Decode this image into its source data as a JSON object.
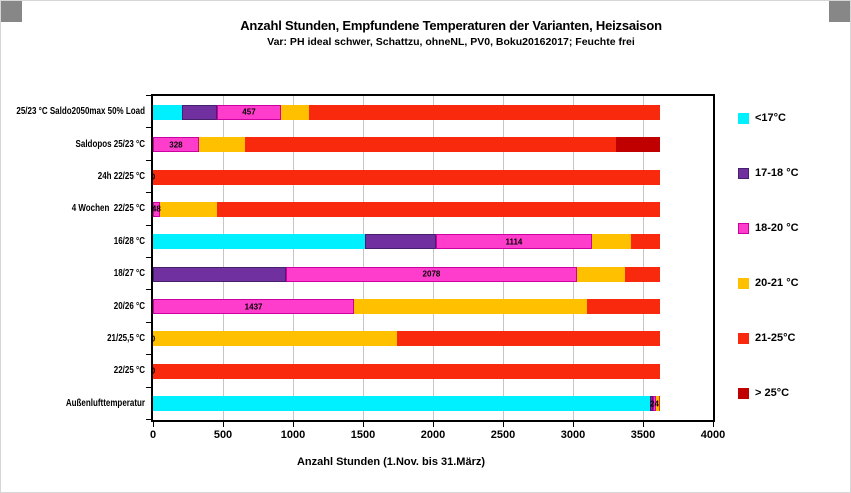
{
  "title": "Anzahl Stunden, Empfundene Temperaturen der Varianten, Heizsaison",
  "subtitle": "Var: PH ideal schwer, Schattzu, ohneNL, PV0, Boku20162017; Feuchte frei",
  "xlabel": "Anzahl Stunden (1.Nov. bis 31.März)",
  "colors": {
    "grid": "#c6c6c6",
    "axis": "#000000",
    "handle_gray": "#878787"
  },
  "chart_data": {
    "type": "bar",
    "orientation": "horizontal",
    "stacked": true,
    "grid": "vertical",
    "legend_position": "right",
    "xlim": [
      0,
      4000
    ],
    "x_ticks": [
      0,
      500,
      1000,
      1500,
      2000,
      2500,
      3000,
      3500,
      4000
    ],
    "categories": [
      "25/23 °C Saldo2050max 50% Load",
      "Saldopos 25/23 °C",
      "24h 22/25 °C",
      "4 Wochen  22/25 °C",
      "16/28 °C",
      "18/27 °C",
      "20/26 °C",
      "21/25,5 °C",
      "22/25 °C",
      "Außenlufttemperatur"
    ],
    "series": [
      {
        "name": "<17°C",
        "color": "#00F0FF",
        "border": null,
        "values": [
          207,
          0,
          0,
          0,
          1514,
          0,
          0,
          0,
          0,
          3550
        ]
      },
      {
        "name": "17-18 °C",
        "color": "#7030A0",
        "border": "#46206B",
        "values": [
          250,
          0,
          0,
          0,
          507,
          950,
          0,
          0,
          0,
          20
        ]
      },
      {
        "name": "18-20 °C",
        "color": "#FF3DCC",
        "border": "#CC00A0",
        "show_labels": true,
        "values": [
          457,
          328,
          0,
          48,
          1114,
          2078,
          1437,
          0,
          0,
          24
        ],
        "labels": [
          "457",
          "328",
          "0",
          "48",
          "1114",
          "2078",
          "1437",
          "0",
          "0",
          "24"
        ]
      },
      {
        "name": "20-21 °C",
        "color": "#FFC000",
        "border": null,
        "values": [
          200,
          330,
          0,
          410,
          280,
          340,
          1661,
          1745,
          0,
          20
        ]
      },
      {
        "name": "21-25°C",
        "color": "#F8290D",
        "border": null,
        "values": [
          2510,
          2649,
          3624,
          3166,
          209,
          256,
          526,
          1879,
          3624,
          10
        ]
      },
      {
        "name": "> 25°C",
        "color": "#C00000",
        "border": null,
        "values": [
          0,
          317,
          0,
          0,
          0,
          0,
          0,
          0,
          0,
          0
        ]
      }
    ]
  }
}
